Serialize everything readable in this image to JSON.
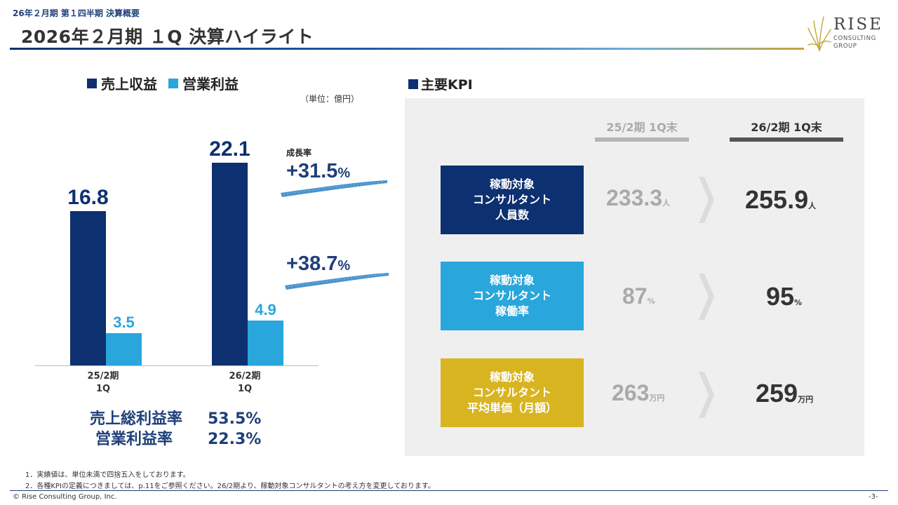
{
  "header": {
    "supertitle": "26年２月期 第１四半期 決算概要",
    "title": "2026年２月期 １Q 決算ハイライト",
    "logo": {
      "name": "RISE",
      "sub1": "CONSULTING",
      "sub2": "GROUP"
    }
  },
  "chart_data": {
    "type": "bar",
    "categories": [
      "25/2期\n1Q",
      "26/2期\n1Q"
    ],
    "series": [
      {
        "name": "売上収益",
        "values": [
          16.8,
          22.1
        ],
        "color": "#0d3070"
      },
      {
        "name": "営業利益",
        "values": [
          3.5,
          4.9
        ],
        "color": "#29a6dc"
      }
    ],
    "unit_label": "（単位：億円）",
    "growth_caption": "成長率",
    "growth": [
      {
        "value": "+31.5",
        "suffix": "%"
      },
      {
        "value": "+38.7",
        "suffix": "%"
      }
    ],
    "ylim": [
      0,
      25
    ]
  },
  "margins": [
    {
      "label": "売上総利益率",
      "value": "53.5%"
    },
    {
      "label": "営業利益率",
      "value": "22.3%"
    }
  ],
  "kpi": {
    "heading": "主要KPI",
    "columns": [
      "25/2期 1Q末",
      "26/2期 1Q末"
    ],
    "rows": [
      {
        "label": [
          "稼動対象",
          "コンサルタント",
          "人員数"
        ],
        "color": "#0d3070",
        "prev": "233.3",
        "curr": "255.9",
        "unit": "人"
      },
      {
        "label": [
          "稼動対象",
          "コンサルタント",
          "稼働率"
        ],
        "color": "#29a6dc",
        "prev": "87",
        "curr": "95",
        "unit": "%"
      },
      {
        "label": [
          "稼動対象",
          "コンサルタント",
          "平均単価（月額）"
        ],
        "color": "#d8b421",
        "prev": "263",
        "curr": "259",
        "unit": "万円"
      }
    ]
  },
  "notes": [
    "1．実績値は、単位未満で四捨五入をしております。",
    "2．各種KPIの定義につきましては、p.11をご参照ください。26/2期より、稼動対象コンサルタントの考え方を変更しております。"
  ],
  "footer": {
    "copyright": "© Rise Consulting Group, Inc.",
    "page": "-3-"
  }
}
